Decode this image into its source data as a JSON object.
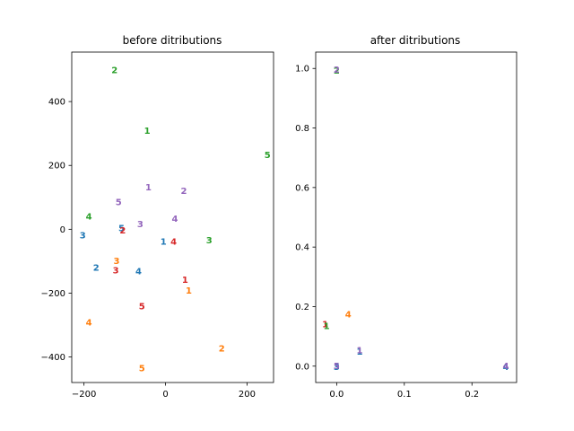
{
  "colors": {
    "1": "#d62728",
    "2": "#1f77b4",
    "3": "#2ca02c",
    "4": "#ff7f0e",
    "5": "#9467bd"
  },
  "chart_data": [
    {
      "type": "scatter",
      "title": "before ditributions",
      "xlim": [
        -230,
        265
      ],
      "ylim": [
        -480,
        555
      ],
      "xticks": [
        -200,
        0,
        200
      ],
      "xtick_labels": [
        "−200",
        "0",
        "200"
      ],
      "yticks": [
        -400,
        -200,
        0,
        200,
        400
      ],
      "ytick_labels": [
        "−400",
        "−200",
        "0",
        "200",
        "400"
      ],
      "points": [
        {
          "label": "2",
          "color": "#2ca02c",
          "x": -125,
          "y": 500
        },
        {
          "label": "1",
          "color": "#2ca02c",
          "x": -45,
          "y": 310
        },
        {
          "label": "5",
          "color": "#2ca02c",
          "x": 250,
          "y": 235
        },
        {
          "label": "1",
          "color": "#9467bd",
          "x": -42,
          "y": 133
        },
        {
          "label": "2",
          "color": "#9467bd",
          "x": 45,
          "y": 122
        },
        {
          "label": "5",
          "color": "#9467bd",
          "x": -115,
          "y": 87
        },
        {
          "label": "4",
          "color": "#2ca02c",
          "x": -188,
          "y": 42
        },
        {
          "label": "4",
          "color": "#9467bd",
          "x": 23,
          "y": 35
        },
        {
          "label": "3",
          "color": "#9467bd",
          "x": -62,
          "y": 18
        },
        {
          "label": "5",
          "color": "#1f77b4",
          "x": -108,
          "y": 5
        },
        {
          "label": "2",
          "color": "#d62728",
          "x": -105,
          "y": -2
        },
        {
          "label": "3",
          "color": "#1f77b4",
          "x": -203,
          "y": -17
        },
        {
          "label": "1",
          "color": "#1f77b4",
          "x": -5,
          "y": -37
        },
        {
          "label": "4",
          "color": "#d62728",
          "x": 20,
          "y": -37
        },
        {
          "label": "3",
          "color": "#2ca02c",
          "x": 107,
          "y": -33
        },
        {
          "label": "3",
          "color": "#ff7f0e",
          "x": -120,
          "y": -97
        },
        {
          "label": "2",
          "color": "#1f77b4",
          "x": -170,
          "y": -118
        },
        {
          "label": "3",
          "color": "#d62728",
          "x": -122,
          "y": -127
        },
        {
          "label": "4",
          "color": "#1f77b4",
          "x": -66,
          "y": -130
        },
        {
          "label": "1",
          "color": "#d62728",
          "x": 48,
          "y": -157
        },
        {
          "label": "1",
          "color": "#ff7f0e",
          "x": 57,
          "y": -190
        },
        {
          "label": "5",
          "color": "#d62728",
          "x": -58,
          "y": -240
        },
        {
          "label": "4",
          "color": "#ff7f0e",
          "x": -188,
          "y": -290
        },
        {
          "label": "2",
          "color": "#ff7f0e",
          "x": 138,
          "y": -372
        },
        {
          "label": "5",
          "color": "#ff7f0e",
          "x": -58,
          "y": -433
        }
      ]
    },
    {
      "type": "scatter",
      "title": "after ditributions",
      "xlim": [
        -0.031,
        0.266
      ],
      "ylim": [
        -0.055,
        1.055
      ],
      "xticks": [
        0.0,
        0.1,
        0.2
      ],
      "xtick_labels": [
        "0.0",
        "0.1",
        "0.2"
      ],
      "yticks": [
        0.0,
        0.2,
        0.4,
        0.6,
        0.8,
        1.0
      ],
      "ytick_labels": [
        "0.0",
        "0.2",
        "0.4",
        "0.6",
        "0.8",
        "1.0"
      ],
      "points": [
        {
          "label": "2",
          "color": "#2ca02c",
          "x": 0.0,
          "y": 0.995
        },
        {
          "label": "2",
          "color": "#9467bd",
          "x": 0.0,
          "y": 0.997
        },
        {
          "label": "4",
          "color": "#ff7f0e",
          "x": 0.017,
          "y": 0.176
        },
        {
          "label": "1",
          "color": "#d62728",
          "x": -0.017,
          "y": 0.142
        },
        {
          "label": "1",
          "color": "#2ca02c",
          "x": -0.015,
          "y": 0.136
        },
        {
          "label": "1",
          "color": "#1f77b4",
          "x": 0.034,
          "y": 0.05
        },
        {
          "label": "1",
          "color": "#9467bd",
          "x": 0.034,
          "y": 0.055
        },
        {
          "label": "3",
          "color": "#1f77b4",
          "x": 0.0,
          "y": 0.0
        },
        {
          "label": "5",
          "color": "#9467bd",
          "x": 0.0,
          "y": 0.002
        },
        {
          "label": "4",
          "color": "#1f77b4",
          "x": 0.25,
          "y": 0.0
        },
        {
          "label": "4",
          "color": "#9467bd",
          "x": 0.25,
          "y": 0.002
        }
      ]
    }
  ]
}
